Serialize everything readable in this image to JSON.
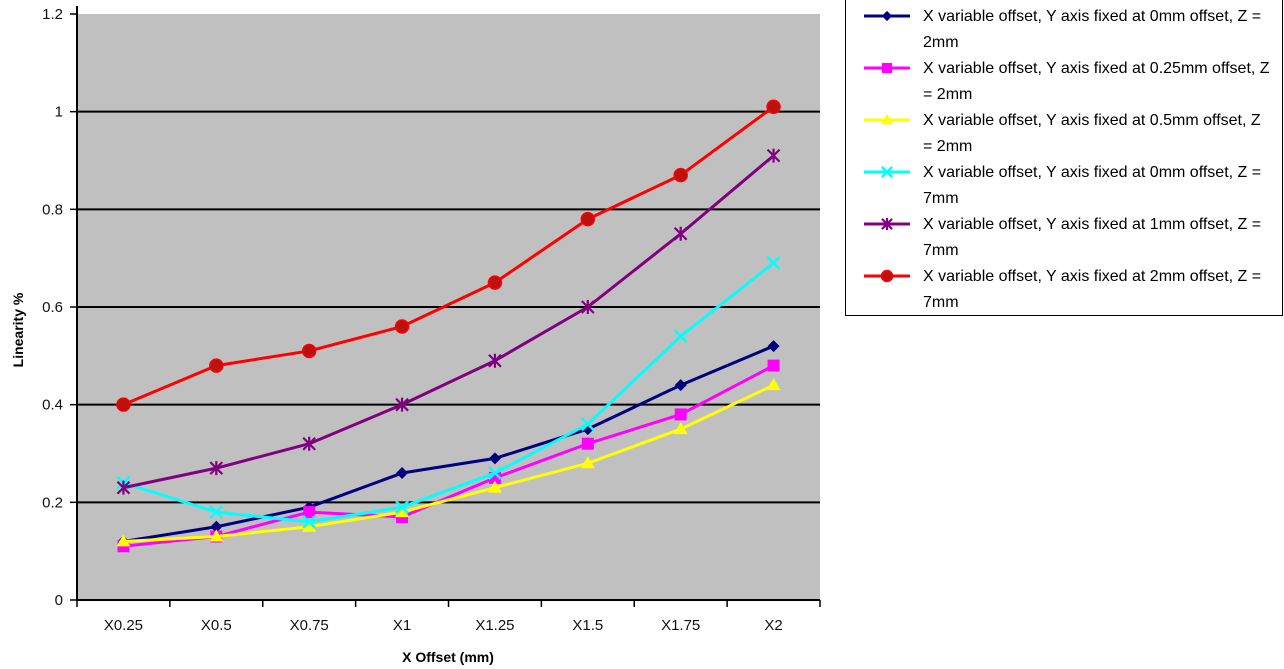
{
  "chart_data": {
    "type": "line",
    "title": "",
    "xlabel": "X Offset (mm)",
    "ylabel": "Linearity %",
    "ylim": [
      0,
      1.2
    ],
    "yticks": [
      0,
      0.2,
      0.4,
      0.6,
      0.8,
      1,
      1.2
    ],
    "ytick_labels": [
      "0",
      "0.2",
      "0.4",
      "0.6",
      "0.8",
      "1",
      "1.2"
    ],
    "categories": [
      "X0.25",
      "X0.5",
      "X0.75",
      "X1",
      "X1.25",
      "X1.5",
      "X1.75",
      "X2"
    ],
    "grid": "horizontal",
    "plot_background": "#c0c0c0",
    "legend_position": "top-right",
    "series": [
      {
        "name": "X variable offset, Y axis fixed at 0mm offset, Z = 2mm",
        "color": "#00007f",
        "marker": "diamond",
        "values": [
          0.12,
          0.15,
          0.19,
          0.26,
          0.29,
          0.35,
          0.44,
          0.52
        ]
      },
      {
        "name": "X variable offset, Y axis fixed at 0.25mm offset, Z = 2mm",
        "color": "#ff00ff",
        "marker": "square",
        "values": [
          0.11,
          0.13,
          0.18,
          0.17,
          0.25,
          0.32,
          0.38,
          0.48
        ]
      },
      {
        "name": "X variable offset, Y axis fixed at 0.5mm offset, Z = 2mm",
        "color": "#ffff00",
        "marker": "triangle",
        "values": [
          0.12,
          0.13,
          0.15,
          0.18,
          0.23,
          0.28,
          0.35,
          0.44
        ]
      },
      {
        "name": "X variable offset, Y axis fixed at 0mm offset, Z = 7mm",
        "color": "#00ffff",
        "marker": "x",
        "values": [
          0.24,
          0.18,
          0.16,
          0.19,
          0.26,
          0.36,
          0.54,
          0.69
        ]
      },
      {
        "name": "X variable offset, Y axis fixed at 1mm offset, Z = 7mm",
        "color": "#800080",
        "marker": "star",
        "values": [
          0.23,
          0.27,
          0.32,
          0.4,
          0.49,
          0.6,
          0.75,
          0.91
        ]
      },
      {
        "name": "X variable offset, Y axis fixed at 2mm offset, Z = 7mm",
        "color": "#ff0000",
        "marker": "circle",
        "values": [
          0.4,
          0.48,
          0.51,
          0.56,
          0.65,
          0.78,
          0.87,
          1.01
        ]
      }
    ]
  }
}
